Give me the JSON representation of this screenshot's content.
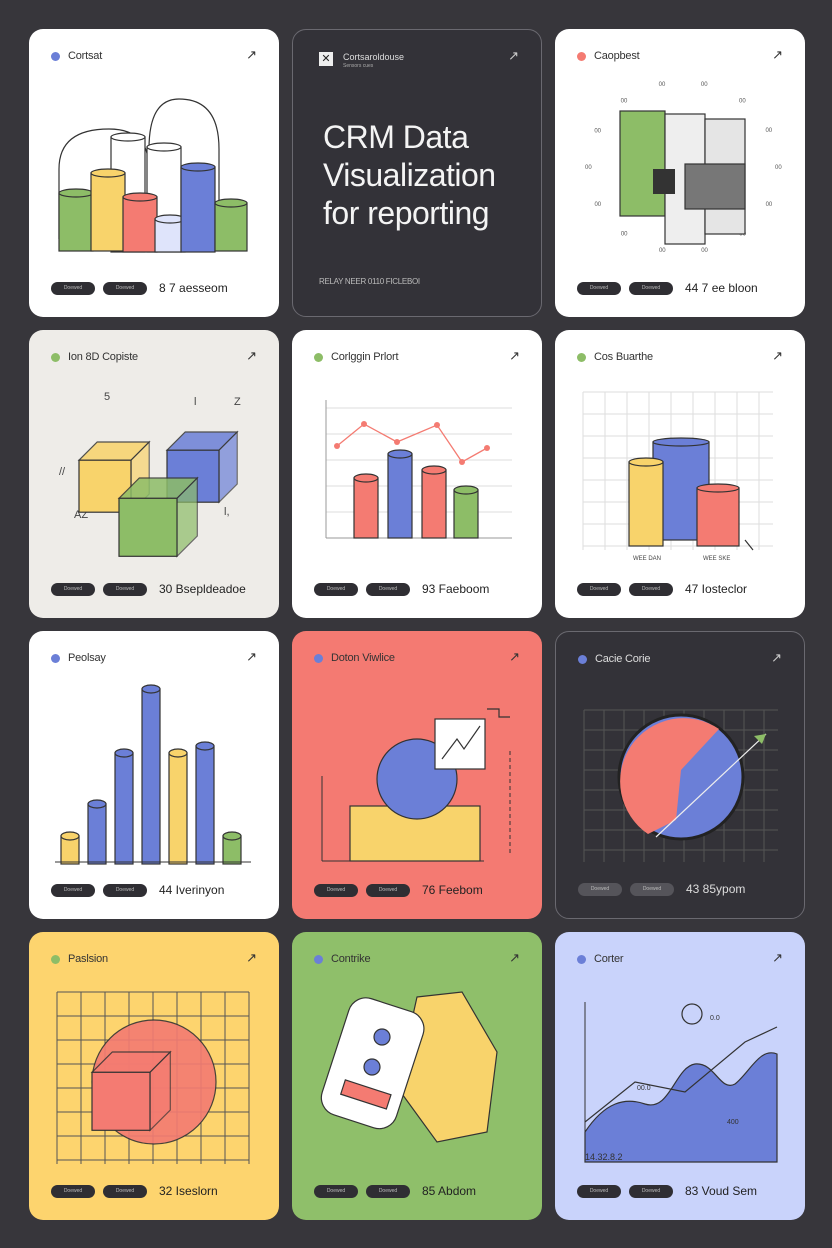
{
  "colors": {
    "blue": "#6b7fd7",
    "yellow": "#f8d36b",
    "red": "#f47b72",
    "green": "#8dbd67",
    "dark": "#333238",
    "background": "#37363b"
  },
  "hero": {
    "brand": "Cortsaroldouse",
    "brand_sub": "Sensors cues",
    "title": "CRM Data Visualization for reporting",
    "footer": "RELAY NEER 0110 FICLEBOI",
    "icon": "arrow-up-right-icon"
  },
  "cards": [
    {
      "title": "Cortsat",
      "value": "8 7 aesseom",
      "bg": "#ffffff",
      "dot": "#6b7fd7",
      "buttons": [
        "Doewed",
        "Doewed"
      ]
    },
    {
      "hero": true
    },
    {
      "title": "Caopbest",
      "value": "44 7 ee bloon",
      "bg": "#ffffff",
      "dot": "#f47b72",
      "buttons": [
        "Doewed",
        "Doewed"
      ]
    },
    {
      "title": "Ion 8D Copiste",
      "value": "30 Bsepldeadoe",
      "bg": "#eeece8",
      "dot": "#8dbd67",
      "buttons": [
        "Doewed",
        "Doewed"
      ]
    },
    {
      "title": "Corlggin Prlort",
      "value": "93 Faeboom",
      "bg": "#ffffff",
      "dot": "#8dbd67",
      "buttons": [
        "Doewed",
        "Doewed"
      ]
    },
    {
      "title": "Cos Buarthe",
      "value": "47 Iosteclor",
      "bg": "#ffffff",
      "dot": "#8dbd67",
      "buttons": [
        "Doewed",
        "Doewed"
      ]
    },
    {
      "title": "Peolsay",
      "value": "44 Iverinyon",
      "bg": "#ffffff",
      "dot": "#6b7fd7",
      "buttons": [
        "Doewed",
        "Doewed"
      ]
    },
    {
      "title": "Doton Viwlice",
      "value": "76 Feebom",
      "bg": "#f47a72",
      "dot": "#6b7fd7",
      "buttons": [
        "Doewed",
        "Doewed"
      ]
    },
    {
      "title": "Cacie Corie",
      "value": "43 85ypom",
      "bg": "#333238",
      "dot": "#6b7fd7",
      "dark": true,
      "buttons": [
        "Doewed",
        "Doewed"
      ]
    },
    {
      "title": "Paslsion",
      "value": "32 Iseslorn",
      "bg": "#fdd46e",
      "dot": "#8dbd67",
      "buttons": [
        "Doewed",
        "Doewed"
      ]
    },
    {
      "title": "Contrike",
      "value": "85 Abdom",
      "bg": "#8fbf6a",
      "dot": "#6b7fd7",
      "buttons": [
        "Doewed",
        "Doewed"
      ]
    },
    {
      "title": "Corter",
      "value": "83 Voud Sem",
      "bg": "#c9d3fb",
      "dot": "#6b7fd7",
      "buttons": [
        "Doewed",
        "Doewed"
      ],
      "labels": [
        "14.32.8.2",
        "00.0",
        "400",
        "0.0"
      ]
    }
  ]
}
